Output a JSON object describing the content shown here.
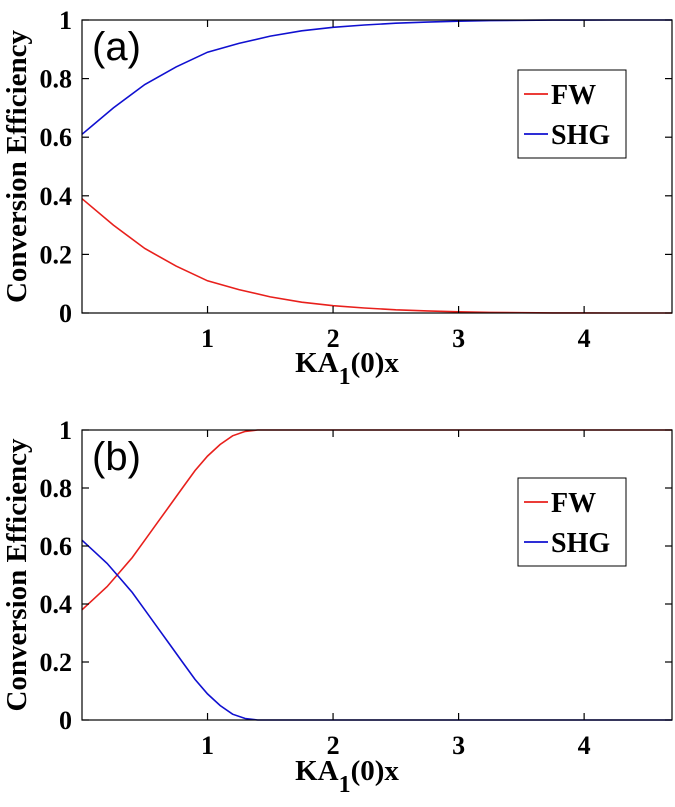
{
  "chart_data": [
    {
      "type": "line",
      "panel_label": "(a)",
      "xlabel_main": "KA",
      "xlabel_sub": "1",
      "xlabel_tail": "(0)x",
      "ylabel": "Conversion Efficiency",
      "xlim": [
        0,
        4.7
      ],
      "ylim": [
        0,
        1
      ],
      "xticks": [
        1,
        2,
        3,
        4
      ],
      "yticks": [
        0,
        0.2,
        0.4,
        0.6,
        0.8,
        1
      ],
      "ytick_labels": [
        "0",
        "0.2",
        "0.4",
        "0.6",
        "0.8",
        "1"
      ],
      "grid": false,
      "legend_position": "top-right",
      "x": [
        0,
        0.25,
        0.5,
        0.75,
        1.0,
        1.25,
        1.5,
        1.75,
        2.0,
        2.25,
        2.5,
        2.75,
        3.0,
        3.25,
        3.5,
        3.75,
        4.0,
        4.25,
        4.5,
        4.7
      ],
      "series": [
        {
          "name": "FW",
          "color": "#e8201c",
          "values": [
            0.39,
            0.3,
            0.22,
            0.16,
            0.11,
            0.08,
            0.055,
            0.037,
            0.025,
            0.017,
            0.011,
            0.007,
            0.004,
            0.002,
            0.001,
            0.0005,
            0.0003,
            0.0001,
            0.0,
            0.0
          ]
        },
        {
          "name": "SHG",
          "color": "#1010d0",
          "values": [
            0.61,
            0.7,
            0.78,
            0.84,
            0.89,
            0.92,
            0.945,
            0.963,
            0.975,
            0.983,
            0.989,
            0.993,
            0.996,
            0.998,
            0.999,
            0.9995,
            0.9997,
            0.9999,
            1.0,
            1.0
          ]
        }
      ]
    },
    {
      "type": "line",
      "panel_label": "(b)",
      "xlabel_main": "KA",
      "xlabel_sub": "1",
      "xlabel_tail": "(0)x",
      "ylabel": "Conversion Efficiency",
      "xlim": [
        0,
        4.7
      ],
      "ylim": [
        0,
        1
      ],
      "xticks": [
        1,
        2,
        3,
        4
      ],
      "yticks": [
        0,
        0.2,
        0.4,
        0.6,
        0.8,
        1
      ],
      "ytick_labels": [
        "0",
        "0.2",
        "0.4",
        "0.6",
        "0.8",
        "1"
      ],
      "grid": false,
      "legend_position": "top-right",
      "x": [
        0,
        0.1,
        0.2,
        0.3,
        0.4,
        0.5,
        0.6,
        0.7,
        0.8,
        0.9,
        1.0,
        1.1,
        1.2,
        1.3,
        1.4,
        1.5,
        2.0,
        2.5,
        3.0,
        3.5,
        4.0,
        4.5,
        4.7
      ],
      "series": [
        {
          "name": "FW",
          "color": "#e8201c",
          "values": [
            0.38,
            0.42,
            0.46,
            0.51,
            0.56,
            0.62,
            0.68,
            0.74,
            0.8,
            0.86,
            0.91,
            0.95,
            0.98,
            0.995,
            1.0,
            1.0,
            1.0,
            1.0,
            1.0,
            1.0,
            1.0,
            1.0,
            1.0
          ]
        },
        {
          "name": "SHG",
          "color": "#1010d0",
          "values": [
            0.62,
            0.58,
            0.54,
            0.49,
            0.44,
            0.38,
            0.32,
            0.26,
            0.2,
            0.14,
            0.09,
            0.05,
            0.02,
            0.005,
            0.0,
            0.0,
            0.0,
            0.0,
            0.0,
            0.0,
            0.0,
            0.0,
            0.0
          ]
        }
      ]
    }
  ]
}
